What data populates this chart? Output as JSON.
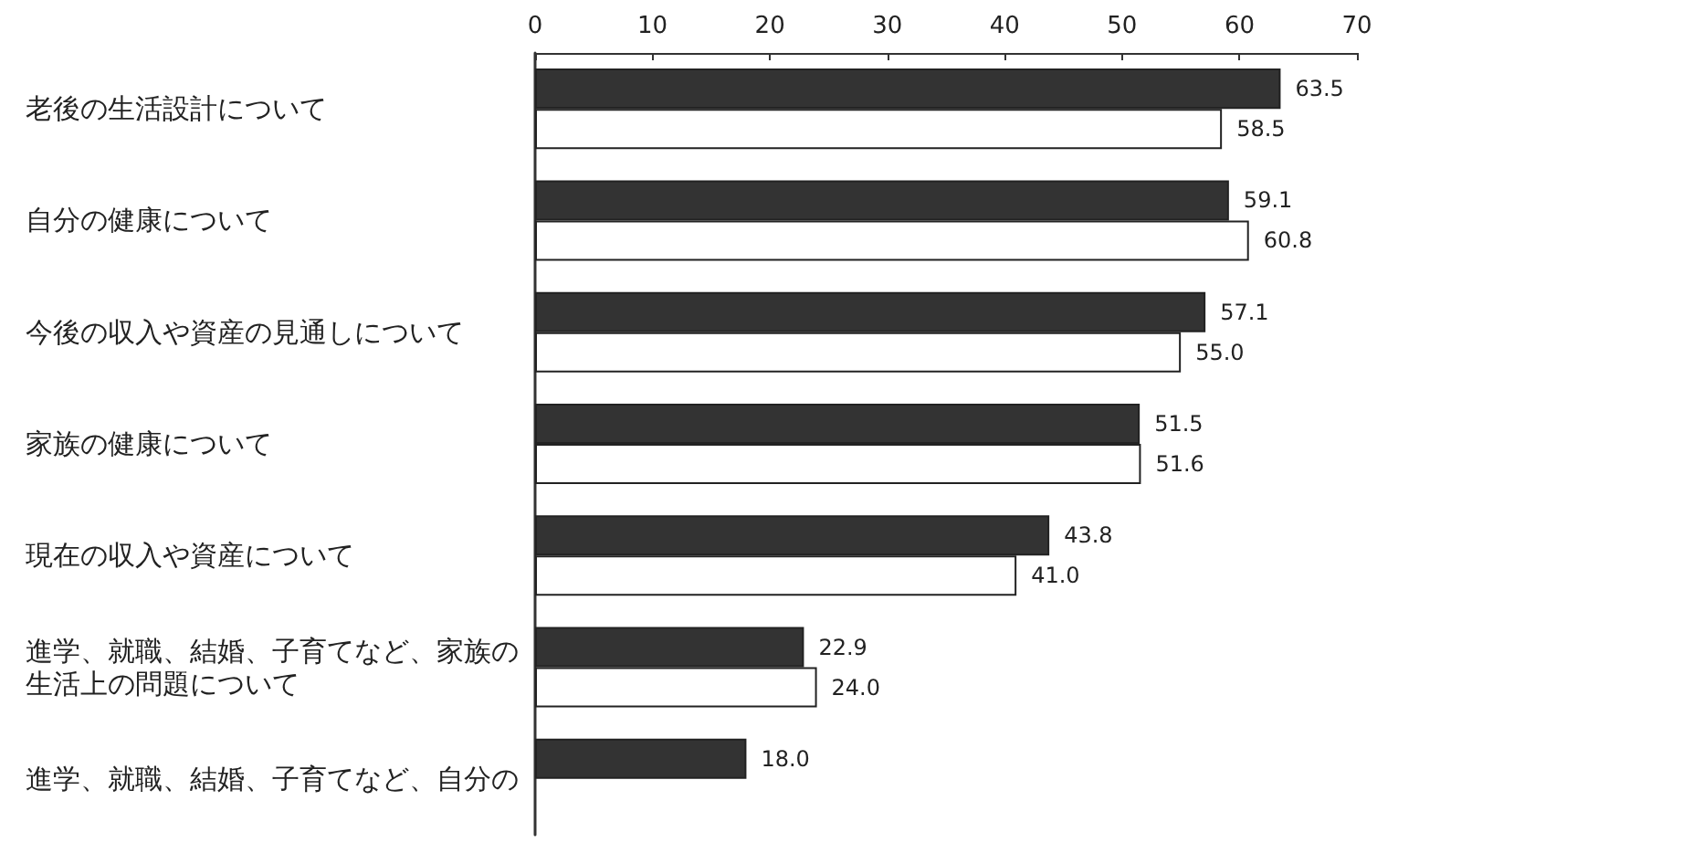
{
  "chart_data": {
    "type": "bar",
    "orientation": "horizontal",
    "categories": [
      "老後の生活設計について",
      "自分の健康について",
      "今後の収入や資産の見通しについて",
      "家族の健康について",
      "現在の収入や資産について",
      "進学、就職、結婚、子育てなど、家族の生活上の問題について",
      "進学、就職、結婚、子育てなど、自分の"
    ],
    "series": [
      {
        "color": "#333333",
        "values": [
          63.5,
          59.1,
          57.1,
          51.5,
          43.8,
          22.9,
          18.0
        ],
        "value_labels": [
          "63.5",
          "59.1",
          "57.1",
          "51.5",
          "43.8",
          "22.9",
          "18.0"
        ]
      },
      {
        "color": "#ffffff",
        "values": [
          58.5,
          60.8,
          55.0,
          51.6,
          41.0,
          24.0,
          null
        ],
        "value_labels": [
          "58.5",
          "60.8",
          "55.0",
          "51.6",
          "41.0",
          "24.0",
          null
        ]
      }
    ],
    "xlim": [
      0,
      70
    ],
    "xticks": [
      0,
      10,
      20,
      30,
      40,
      50,
      60,
      70
    ]
  }
}
